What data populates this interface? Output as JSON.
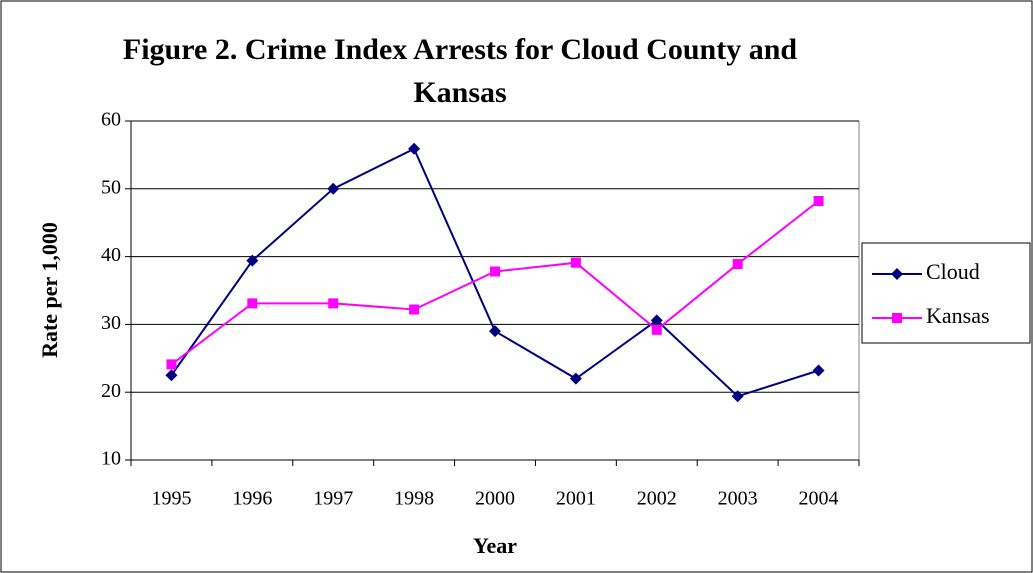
{
  "chart_data": {
    "type": "line",
    "title": "Figure 2. Crime Index Arrests for Cloud County and Kansas",
    "x_label": "Year",
    "y_label": "Rate per 1,000",
    "categories": [
      "1995",
      "1996",
      "1997",
      "1998",
      "2000",
      "2001",
      "2002",
      "2003",
      "2004"
    ],
    "series": [
      {
        "name": "Cloud",
        "color": "#000080",
        "marker": "diamond",
        "values": [
          22.5,
          39.4,
          50,
          55.9,
          29,
          22,
          30.6,
          19.4,
          23.2
        ]
      },
      {
        "name": "Kansas",
        "color": "#ff00ff",
        "marker": "square",
        "values": [
          24.1,
          33.1,
          33.1,
          32.2,
          37.8,
          39.1,
          29.2,
          38.9,
          48.2
        ]
      }
    ],
    "ylim": [
      10,
      60
    ],
    "yticks": [
      10,
      20,
      30,
      40,
      50,
      60
    ],
    "grid": true,
    "legend": "right"
  }
}
